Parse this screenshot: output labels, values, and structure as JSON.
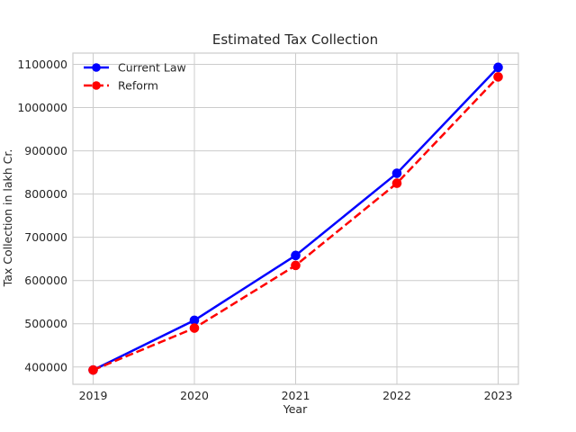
{
  "chart_data": {
    "type": "line",
    "title": "Estimated Tax Collection",
    "xlabel": "Year",
    "ylabel": "Tax Collection in lakh Cr.",
    "x": [
      2019,
      2020,
      2021,
      2022,
      2023
    ],
    "x_tick_labels": [
      "2019",
      "2020",
      "2021",
      "2022",
      "2023"
    ],
    "y_ticks": [
      400000,
      500000,
      600000,
      700000,
      800000,
      900000,
      1000000,
      1100000
    ],
    "y_tick_labels": [
      "400000",
      "500000",
      "600000",
      "700000",
      "800000",
      "900000",
      "1000000",
      "1100000"
    ],
    "xlim": [
      2018.8,
      2023.2
    ],
    "ylim": [
      360000,
      1126000
    ],
    "grid": true,
    "legend_position": "upper-left",
    "series": [
      {
        "name": "Current Law",
        "color": "#0000ff",
        "line_style": "solid",
        "marker": "circle",
        "values": [
          393000,
          508000,
          658000,
          848000,
          1093000
        ]
      },
      {
        "name": "Reform",
        "color": "#ff0000",
        "line_style": "dashed",
        "marker": "circle",
        "values": [
          393000,
          490000,
          635000,
          825000,
          1071000
        ]
      }
    ]
  }
}
